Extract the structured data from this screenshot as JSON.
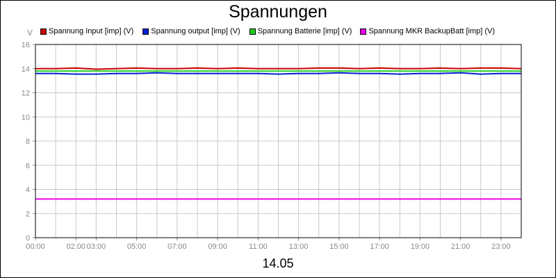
{
  "chart_data": {
    "type": "line",
    "title": "Spannungen",
    "ylabel": "V",
    "xlabel": "14.05",
    "ylim": [
      0,
      16
    ],
    "y_ticks": [
      "0",
      "2",
      "4",
      "6",
      "8",
      "10",
      "12",
      "14",
      "16"
    ],
    "x_ticks": [
      {
        "h": 0,
        "label": "00:00"
      },
      {
        "h": 2,
        "label": "02:00"
      },
      {
        "h": 3,
        "label": "03:00"
      },
      {
        "h": 5,
        "label": "05:00"
      },
      {
        "h": 7,
        "label": "07:00"
      },
      {
        "h": 9,
        "label": "09:00"
      },
      {
        "h": 11,
        "label": "11:00"
      },
      {
        "h": 13,
        "label": "13:00"
      },
      {
        "h": 15,
        "label": "15:00"
      },
      {
        "h": 17,
        "label": "17:00"
      },
      {
        "h": 19,
        "label": "19:00"
      },
      {
        "h": 21,
        "label": "21:00"
      },
      {
        "h": 23,
        "label": "23:00"
      }
    ],
    "x_range_hours": [
      0,
      24
    ],
    "grid": true,
    "legend_position": "top",
    "series": [
      {
        "name": "Spannung Input [imp] (V)",
        "color": "#cc0000",
        "x": [
          0,
          1,
          2,
          3,
          4,
          5,
          6,
          7,
          8,
          9,
          10,
          11,
          12,
          13,
          14,
          15,
          16,
          17,
          18,
          19,
          20,
          21,
          22,
          23,
          24
        ],
        "y": [
          14.0,
          14.0,
          14.05,
          13.95,
          14.0,
          14.05,
          14.0,
          14.0,
          14.05,
          14.0,
          14.05,
          14.0,
          14.0,
          14.0,
          14.05,
          14.05,
          14.0,
          14.05,
          14.0,
          14.0,
          14.05,
          14.0,
          14.05,
          14.05,
          14.0
        ]
      },
      {
        "name": "Spannung output [imp] (V)",
        "color": "#0022cc",
        "x": [
          0,
          1,
          2,
          3,
          4,
          5,
          6,
          7,
          8,
          9,
          10,
          11,
          12,
          13,
          14,
          15,
          16,
          17,
          18,
          19,
          20,
          21,
          22,
          23,
          24
        ],
        "y": [
          13.6,
          13.6,
          13.55,
          13.55,
          13.6,
          13.6,
          13.65,
          13.6,
          13.6,
          13.6,
          13.6,
          13.6,
          13.55,
          13.6,
          13.6,
          13.65,
          13.6,
          13.6,
          13.55,
          13.6,
          13.6,
          13.65,
          13.55,
          13.6,
          13.6
        ]
      },
      {
        "name": "Spannung Batterie [imp] (V)",
        "color": "#22cc22",
        "x": [
          0,
          24
        ],
        "y": [
          13.8,
          13.8
        ]
      },
      {
        "name": "Spannung MKR BackupBatt [imp] (V)",
        "color": "#ee00ee",
        "x": [
          0,
          24
        ],
        "y": [
          3.2,
          3.2
        ]
      }
    ]
  }
}
